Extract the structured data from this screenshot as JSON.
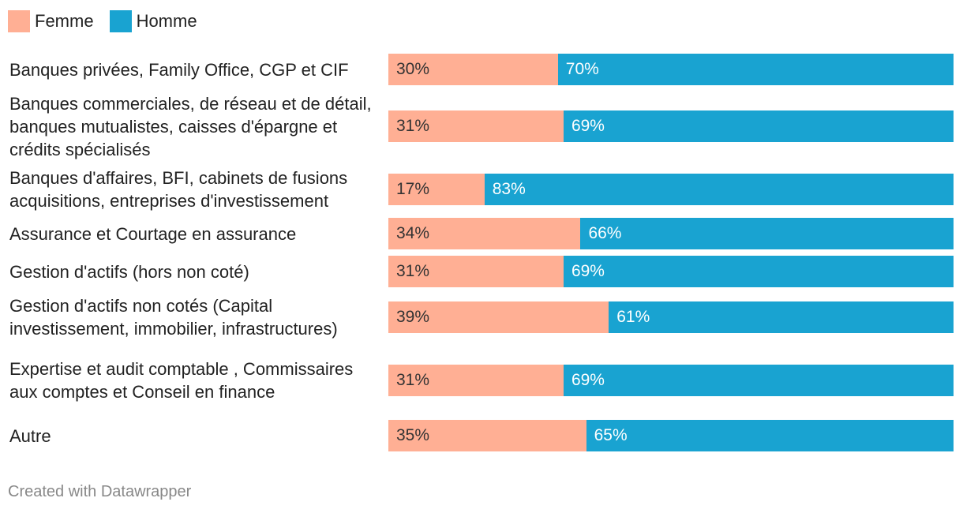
{
  "chart_data": {
    "type": "bar",
    "orientation": "horizontal",
    "stacked": true,
    "legend_position": "top-left",
    "categories": [
      "Banques privées, Family Office, CGP et CIF",
      "Banques commerciales, de réseau et de détail, banques mutualistes, caisses d'épargne et crédits spécialisés",
      "Banques d'affaires, BFI, cabinets de fusions acquisitions, entreprises d'investissement",
      "Assurance et Courtage en assurance",
      "Gestion d'actifs (hors non coté)",
      "Gestion d'actifs non cotés (Capital investissement, immobilier, infrastructures)",
      "Expertise et audit comptable , Commissaires aux comptes et Conseil en finance",
      "Autre"
    ],
    "series": [
      {
        "name": "Femme",
        "color": "#ffaf94",
        "label_color": "#333333",
        "values": [
          30,
          31,
          17,
          34,
          31,
          39,
          31,
          35
        ]
      },
      {
        "name": "Homme",
        "color": "#19a3d1",
        "label_color": "#ffffff",
        "values": [
          70,
          69,
          83,
          66,
          69,
          61,
          69,
          65
        ]
      }
    ],
    "value_suffix": "%",
    "xlim": [
      0,
      100
    ]
  },
  "footer": {
    "credit": "Created with Datawrapper"
  }
}
